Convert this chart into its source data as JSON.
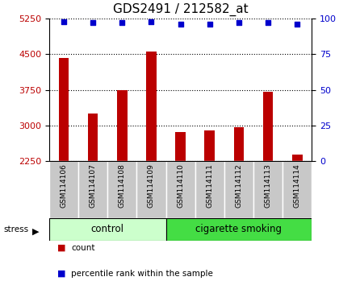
{
  "title": "GDS2491 / 212582_at",
  "samples": [
    "GSM114106",
    "GSM114107",
    "GSM114108",
    "GSM114109",
    "GSM114110",
    "GSM114111",
    "GSM114112",
    "GSM114113",
    "GSM114114"
  ],
  "counts": [
    4420,
    3250,
    3750,
    4560,
    2860,
    2900,
    2970,
    3700,
    2390
  ],
  "percentile_ranks": [
    98,
    97,
    97,
    98,
    96,
    96,
    97,
    97,
    96
  ],
  "groups": [
    "control",
    "control",
    "control",
    "control",
    "cigarette smoking",
    "cigarette smoking",
    "cigarette smoking",
    "cigarette smoking",
    "cigarette smoking"
  ],
  "n_control": 4,
  "ylim_left": [
    2250,
    5250
  ],
  "ylim_right": [
    0,
    100
  ],
  "yticks_left": [
    2250,
    3000,
    3750,
    4500,
    5250
  ],
  "yticks_right": [
    0,
    25,
    50,
    75,
    100
  ],
  "bar_color": "#bb0000",
  "dot_color": "#0000cc",
  "control_color": "#ccffcc",
  "smoking_color": "#44dd44",
  "label_bg_color": "#c8c8c8",
  "title_fontsize": 11,
  "tick_fontsize": 8,
  "bar_width": 0.35
}
